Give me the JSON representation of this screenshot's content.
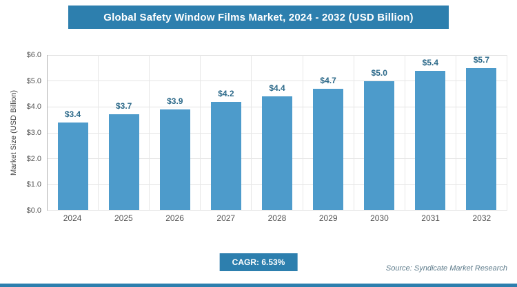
{
  "chart_data": {
    "type": "bar",
    "title": "Global Safety Window Films Market, 2024 - 2032 (USD Billion)",
    "categories": [
      "2024",
      "2025",
      "2026",
      "2027",
      "2028",
      "2029",
      "2030",
      "2031",
      "2032"
    ],
    "values": [
      3.4,
      3.7,
      3.9,
      4.2,
      4.4,
      4.7,
      5.0,
      5.4,
      5.7
    ],
    "bar_labels": [
      "$3.4",
      "$3.7",
      "$3.9",
      "$4.2",
      "$4.4",
      "$4.7",
      "$5.0",
      "$5.4",
      "$5.7"
    ],
    "xlabel": "",
    "ylabel": "Market Size (USD Billion)",
    "ylim": [
      0,
      6.0
    ],
    "y_ticks": [
      "$6.0",
      "$5.0",
      "$4.0",
      "$3.0",
      "$2.0",
      "$1.0",
      "$0.0"
    ],
    "grid": true,
    "legend": false
  },
  "footer": {
    "cagr_label": "CAGR: 6.53%",
    "source": "Source: Syndicate Market Research"
  },
  "colors": {
    "banner_bg": "#2d7fae",
    "bar": "#4d9bcb",
    "bar_label_text": "#2d6a8a",
    "accent_bottom_line": "#2d7fae"
  }
}
